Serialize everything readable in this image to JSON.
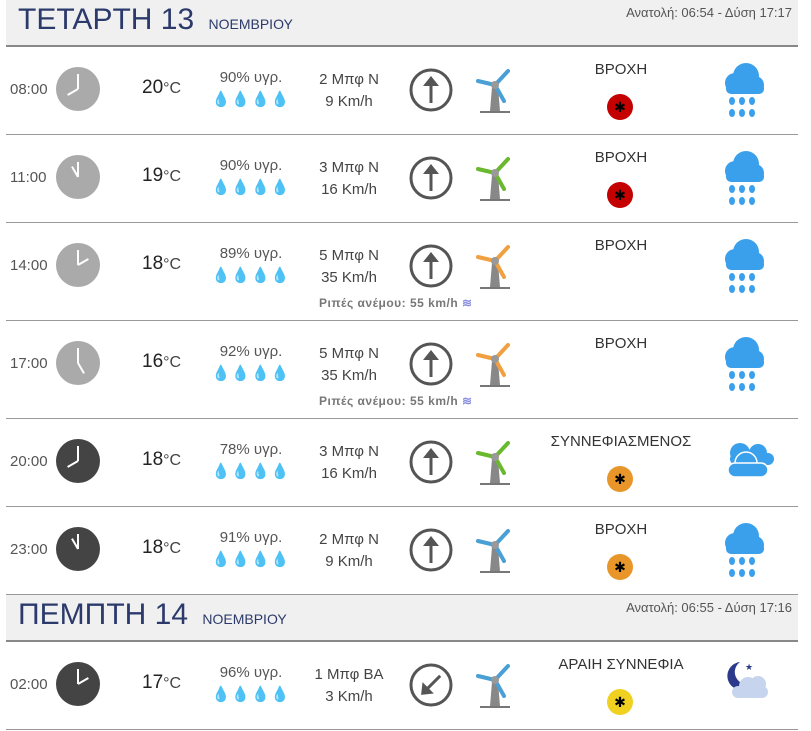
{
  "days": [
    {
      "name": "ΤΕΤΑΡΤΗ 13",
      "month": "ΝΟΕΜΒΡΙΟΥ",
      "sun": "Ανατολή: 06:54  - Δύση 17:17",
      "rows": [
        {
          "time": "08:00",
          "hour": 8,
          "night": false,
          "temp": "20",
          "unit": "°C",
          "hum": "90% υγρ.",
          "bft": "2 Μπφ N",
          "kmh": "9 Km/h",
          "dir": "N",
          "blade": "#4a9fd4",
          "cond": "ΒΡΟΧΗ",
          "mosq": "#c40000",
          "icon": "rain"
        },
        {
          "time": "11:00",
          "hour": 11,
          "night": false,
          "temp": "19",
          "unit": "°C",
          "hum": "90% υγρ.",
          "bft": "3 Μπφ N",
          "kmh": "16 Km/h",
          "dir": "N",
          "blade": "#6ab82e",
          "cond": "ΒΡΟΧΗ",
          "mosq": "#c40000",
          "icon": "rain"
        },
        {
          "time": "14:00",
          "hour": 2,
          "night": false,
          "temp": "18",
          "unit": "°C",
          "hum": "89% υγρ.",
          "bft": "5 Μπφ N",
          "kmh": "35 Km/h",
          "dir": "N",
          "blade": "#f0a040",
          "gust": "Ριπές ανέμου: 55 km/h",
          "cond": "ΒΡΟΧΗ",
          "mosq": null,
          "icon": "rain"
        },
        {
          "time": "17:00",
          "hour": 5,
          "night": false,
          "temp": "16",
          "unit": "°C",
          "hum": "92% υγρ.",
          "bft": "5 Μπφ N",
          "kmh": "35 Km/h",
          "dir": "N",
          "blade": "#f0a040",
          "gust": "Ριπές ανέμου: 55 km/h",
          "cond": "ΒΡΟΧΗ",
          "mosq": null,
          "icon": "rain"
        },
        {
          "time": "20:00",
          "hour": 8,
          "night": true,
          "temp": "18",
          "unit": "°C",
          "hum": "78% υγρ.",
          "bft": "3 Μπφ N",
          "kmh": "16 Km/h",
          "dir": "N",
          "blade": "#6ab82e",
          "cond": "ΣΥΝΝΕΦΙΑΣΜΕΝΟΣ",
          "mosq": "#e8962a",
          "icon": "clouds"
        },
        {
          "time": "23:00",
          "hour": 11,
          "night": true,
          "temp": "18",
          "unit": "°C",
          "hum": "91% υγρ.",
          "bft": "2 Μπφ N",
          "kmh": "9 Km/h",
          "dir": "N",
          "blade": "#4a9fd4",
          "cond": "ΒΡΟΧΗ",
          "mosq": "#e8962a",
          "icon": "rain"
        }
      ]
    },
    {
      "name": "ΠΕΜΠΤΗ 14",
      "month": "ΝΟΕΜΒΡΙΟΥ",
      "sun": "Ανατολή: 06:55  - Δύση 17:16",
      "rows": [
        {
          "time": "02:00",
          "hour": 2,
          "night": true,
          "temp": "17",
          "unit": "°C",
          "hum": "96% υγρ.",
          "bft": "1 Μπφ ΒΑ",
          "kmh": "3 Km/h",
          "dir": "NE",
          "blade": "#4a9fd4",
          "cond": "ΑΡΑΙΗ ΣΥΝΝΕΦΙΑ",
          "mosq": "#f0d020",
          "icon": "night-cloud"
        }
      ]
    }
  ]
}
